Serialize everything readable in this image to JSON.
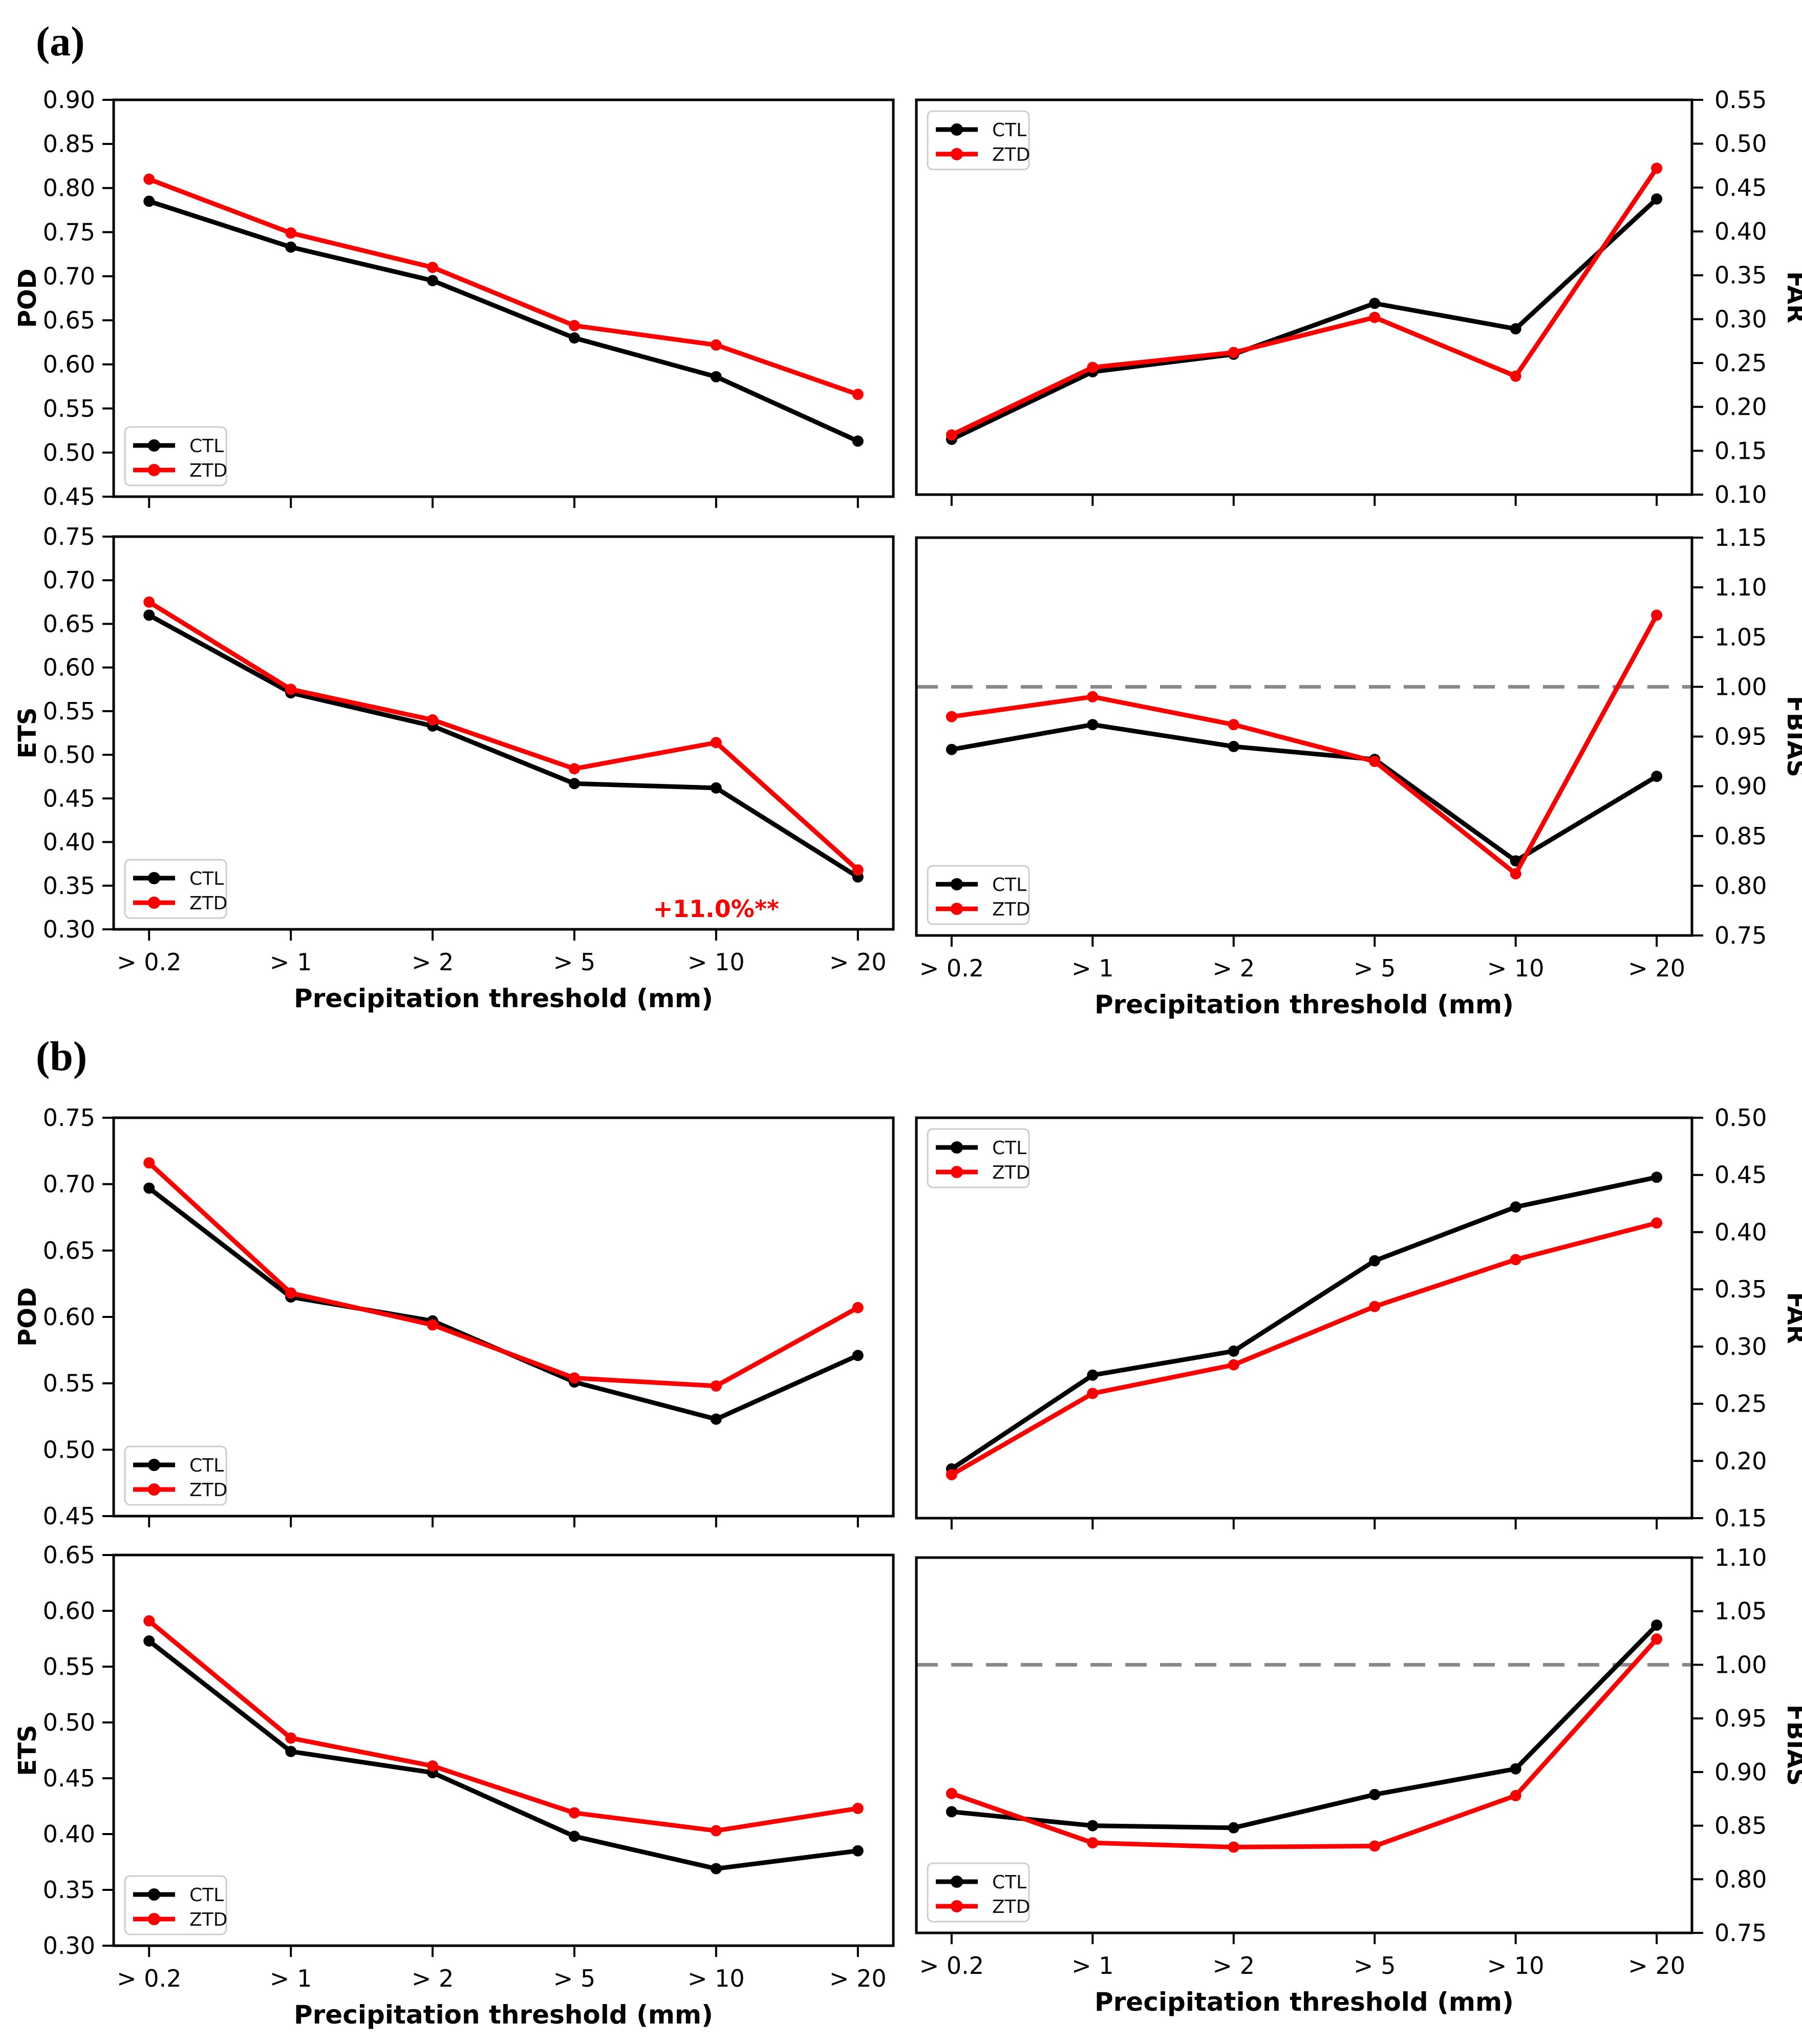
{
  "figure": {
    "panel_a_label": "(a)",
    "panel_b_label": "(b)",
    "x_categories": [
      "> 0.2",
      "> 1",
      "> 2",
      "> 5",
      "> 10",
      "> 20"
    ],
    "xlabel": "Precipitation threshold (mm)",
    "series_names": [
      "CTL",
      "ZTD"
    ],
    "colors": {
      "ctl": "#000000",
      "ztd": "#fb0000",
      "reference_line": "#888888",
      "legend_border": "#cccccc",
      "annotation": "#fb0000"
    }
  },
  "chart_data": [
    {
      "id": "a_pod",
      "panel": "a",
      "type": "line",
      "ylabel": "POD",
      "yaxis_side": "left",
      "ylim": [
        0.45,
        0.9
      ],
      "ytick_step": 0.05,
      "x_tick_labels_visible": false,
      "xlabel": "",
      "legend_position": "lower-left",
      "series": [
        {
          "name": "CTL",
          "color": "#000000",
          "values": [
            0.785,
            0.733,
            0.695,
            0.63,
            0.586,
            0.513
          ]
        },
        {
          "name": "ZTD",
          "color": "#fb0000",
          "values": [
            0.81,
            0.749,
            0.71,
            0.644,
            0.622,
            0.566
          ]
        }
      ]
    },
    {
      "id": "a_far",
      "panel": "a",
      "type": "line",
      "ylabel": "FAR",
      "yaxis_side": "right",
      "ylim": [
        0.1,
        0.55
      ],
      "ytick_step": 0.05,
      "x_tick_labels_visible": false,
      "xlabel": "",
      "legend_position": "upper-left",
      "series": [
        {
          "name": "CTL",
          "color": "#000000",
          "values": [
            0.163,
            0.24,
            0.26,
            0.318,
            0.289,
            0.437
          ]
        },
        {
          "name": "ZTD",
          "color": "#fb0000",
          "values": [
            0.168,
            0.245,
            0.262,
            0.302,
            0.235,
            0.472
          ]
        }
      ]
    },
    {
      "id": "a_ets",
      "panel": "a",
      "type": "line",
      "ylabel": "ETS",
      "yaxis_side": "left",
      "ylim": [
        0.3,
        0.75
      ],
      "ytick_step": 0.05,
      "x_tick_labels_visible": true,
      "xlabel": "Precipitation threshold (mm)",
      "legend_position": "lower-left",
      "annotation": {
        "text": "+11.0%**",
        "color": "#fb0000",
        "x_index": 4,
        "y_offset_from_bottom": 24
      },
      "series": [
        {
          "name": "CTL",
          "color": "#000000",
          "values": [
            0.66,
            0.571,
            0.533,
            0.467,
            0.462,
            0.36
          ]
        },
        {
          "name": "ZTD",
          "color": "#fb0000",
          "values": [
            0.675,
            0.575,
            0.54,
            0.484,
            0.514,
            0.368
          ]
        }
      ]
    },
    {
      "id": "a_fbias",
      "panel": "a",
      "type": "line",
      "ylabel": "FBIAS",
      "yaxis_side": "right",
      "ylim": [
        0.75,
        1.15
      ],
      "ytick_step": 0.05,
      "x_tick_labels_visible": true,
      "xlabel": "Precipitation threshold (mm)",
      "legend_position": "lower-left",
      "reference_line": 1.0,
      "series": [
        {
          "name": "CTL",
          "color": "#000000",
          "values": [
            0.937,
            0.962,
            0.94,
            0.927,
            0.825,
            0.91
          ]
        },
        {
          "name": "ZTD",
          "color": "#fb0000",
          "values": [
            0.97,
            0.99,
            0.962,
            0.925,
            0.812,
            1.072
          ]
        }
      ]
    },
    {
      "id": "b_pod",
      "panel": "b",
      "type": "line",
      "ylabel": "POD",
      "yaxis_side": "left",
      "ylim": [
        0.45,
        0.75
      ],
      "ytick_step": 0.05,
      "x_tick_labels_visible": false,
      "xlabel": "",
      "legend_position": "lower-left",
      "series": [
        {
          "name": "CTL",
          "color": "#000000",
          "values": [
            0.697,
            0.615,
            0.597,
            0.551,
            0.523,
            0.571
          ]
        },
        {
          "name": "ZTD",
          "color": "#fb0000",
          "values": [
            0.716,
            0.618,
            0.594,
            0.554,
            0.548,
            0.607
          ]
        }
      ]
    },
    {
      "id": "b_far",
      "panel": "b",
      "type": "line",
      "ylabel": "FAR",
      "yaxis_side": "right",
      "ylim": [
        0.15,
        0.5
      ],
      "ytick_step": 0.05,
      "x_tick_labels_visible": false,
      "xlabel": "",
      "legend_position": "upper-left",
      "series": [
        {
          "name": "CTL",
          "color": "#000000",
          "values": [
            0.193,
            0.275,
            0.296,
            0.375,
            0.422,
            0.448
          ]
        },
        {
          "name": "ZTD",
          "color": "#fb0000",
          "values": [
            0.188,
            0.259,
            0.284,
            0.335,
            0.376,
            0.408
          ]
        }
      ]
    },
    {
      "id": "b_ets",
      "panel": "b",
      "type": "line",
      "ylabel": "ETS",
      "yaxis_side": "left",
      "ylim": [
        0.3,
        0.65
      ],
      "ytick_step": 0.05,
      "x_tick_labels_visible": true,
      "xlabel": "Precipitation threshold (mm)",
      "legend_position": "lower-left",
      "series": [
        {
          "name": "CTL",
          "color": "#000000",
          "values": [
            0.573,
            0.474,
            0.455,
            0.398,
            0.369,
            0.385
          ]
        },
        {
          "name": "ZTD",
          "color": "#fb0000",
          "values": [
            0.591,
            0.486,
            0.461,
            0.419,
            0.403,
            0.423
          ]
        }
      ]
    },
    {
      "id": "b_fbias",
      "panel": "b",
      "type": "line",
      "ylabel": "FBIAS",
      "yaxis_side": "right",
      "ylim": [
        0.75,
        1.1
      ],
      "ytick_step": 0.05,
      "x_tick_labels_visible": true,
      "xlabel": "Precipitation threshold (mm)",
      "legend_position": "lower-left",
      "reference_line": 1.0,
      "series": [
        {
          "name": "CTL",
          "color": "#000000",
          "values": [
            0.863,
            0.85,
            0.848,
            0.879,
            0.903,
            1.037
          ]
        },
        {
          "name": "ZTD",
          "color": "#fb0000",
          "values": [
            0.88,
            0.834,
            0.83,
            0.831,
            0.878,
            1.024
          ]
        }
      ]
    }
  ]
}
